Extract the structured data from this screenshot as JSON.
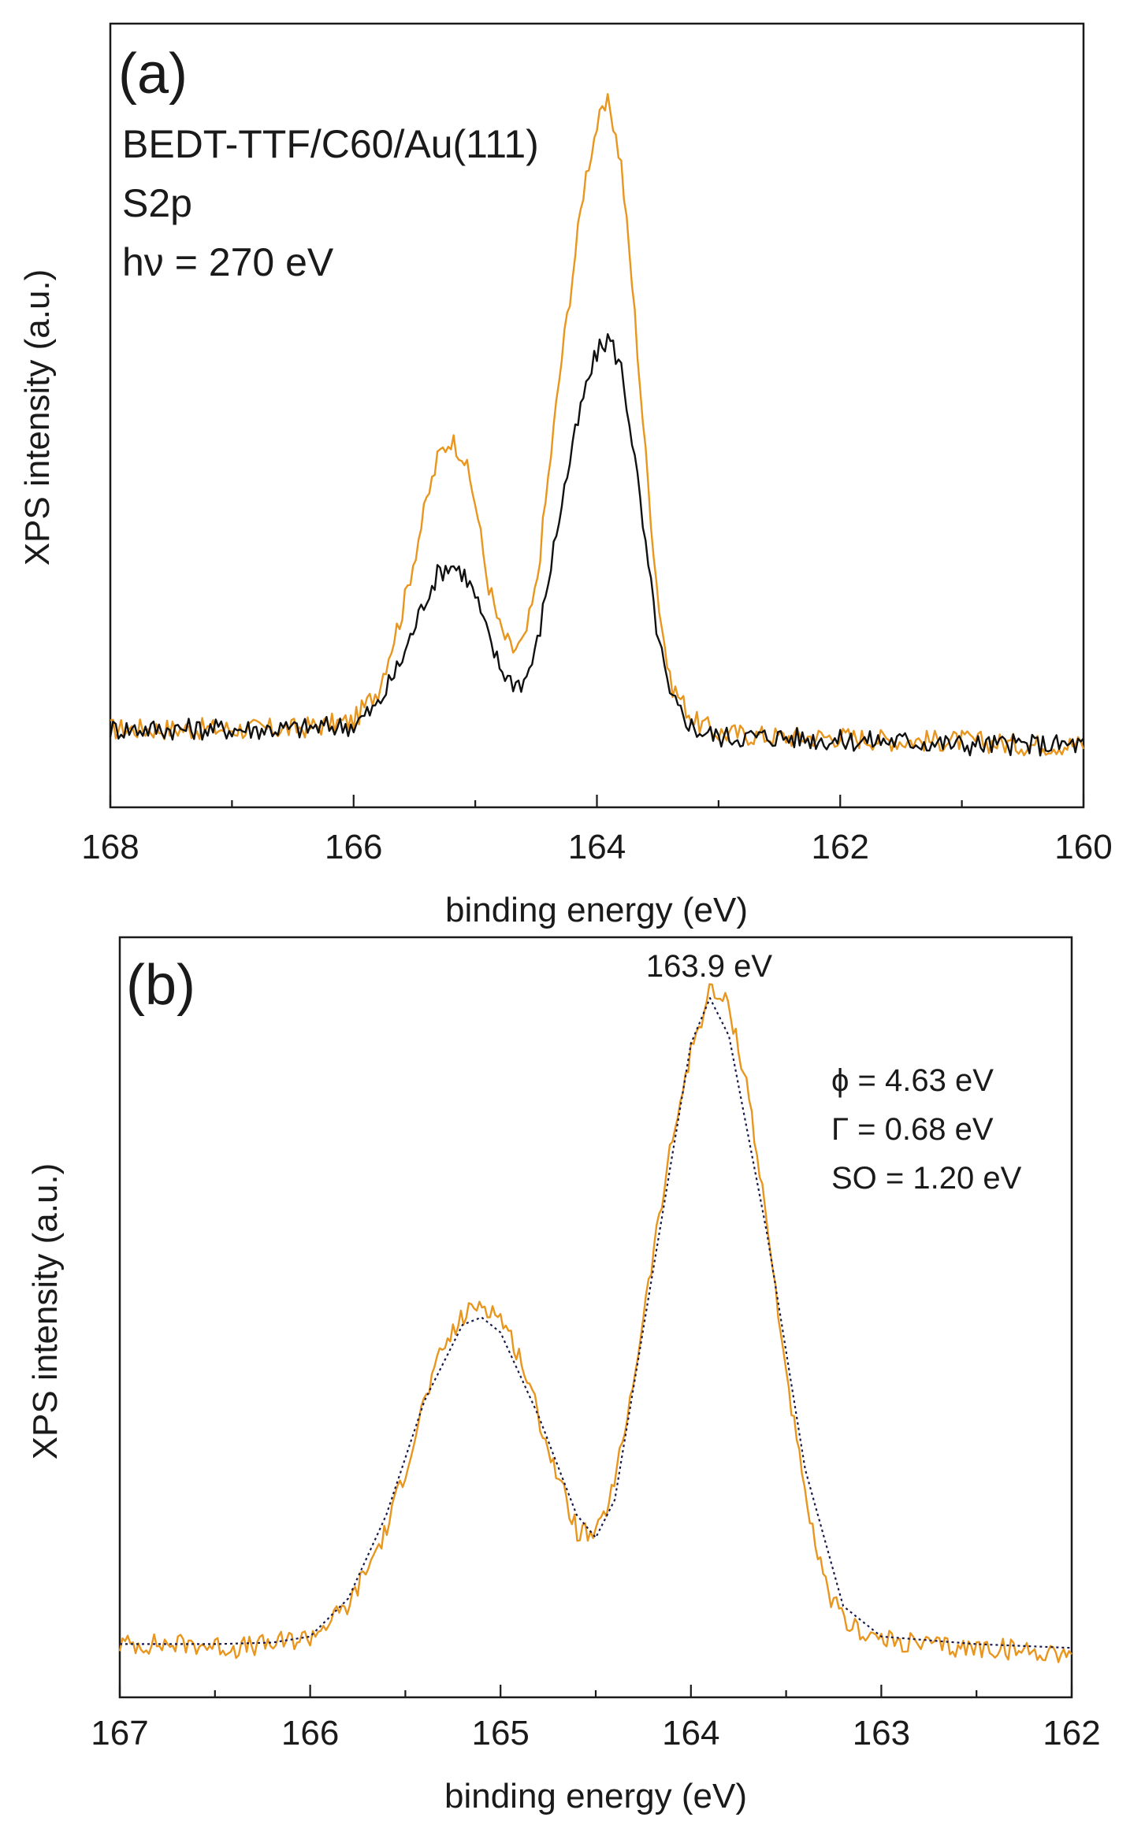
{
  "chart_data": [
    {
      "panel": "(a)",
      "type": "line",
      "annotations": [
        "BEDT-TTF/C60/Au(111)",
        "S2p",
        "hν = 270 eV"
      ],
      "xlabel": "binding energy (eV)",
      "ylabel": "XPS intensity (a.u.)",
      "xlim": [
        168,
        160
      ],
      "xticks": [
        "168",
        "166",
        "164",
        "162",
        "160"
      ],
      "ylim": [
        0,
        1.0
      ],
      "grid": false,
      "series": [
        {
          "color": "#e8961e",
          "x": [
            168,
            167.5,
            167,
            166.5,
            166,
            165.8,
            165.6,
            165.4,
            165.3,
            165.2,
            165.1,
            165.0,
            164.9,
            164.8,
            164.7,
            164.6,
            164.5,
            164.4,
            164.3,
            164.2,
            164.1,
            164.0,
            163.9,
            163.8,
            163.7,
            163.6,
            163.5,
            163.4,
            163.2,
            163.0,
            162.5,
            162,
            161.5,
            161,
            160.5,
            160
          ],
          "y": [
            0.1,
            0.1,
            0.1,
            0.1,
            0.11,
            0.15,
            0.25,
            0.39,
            0.45,
            0.47,
            0.45,
            0.39,
            0.29,
            0.23,
            0.2,
            0.21,
            0.28,
            0.42,
            0.56,
            0.68,
            0.8,
            0.87,
            0.9,
            0.82,
            0.65,
            0.45,
            0.27,
            0.16,
            0.11,
            0.095,
            0.09,
            0.09,
            0.085,
            0.085,
            0.08,
            0.08
          ]
        },
        {
          "color": "#111111",
          "x": [
            168,
            167.5,
            167,
            166.5,
            166,
            165.8,
            165.6,
            165.4,
            165.3,
            165.2,
            165.1,
            165.0,
            164.9,
            164.8,
            164.7,
            164.6,
            164.5,
            164.4,
            164.3,
            164.2,
            164.1,
            164.0,
            163.9,
            163.8,
            163.7,
            163.6,
            163.5,
            163.4,
            163.2,
            163.0,
            162.5,
            162,
            161.5,
            161,
            160.5,
            160
          ],
          "y": [
            0.1,
            0.1,
            0.1,
            0.1,
            0.105,
            0.13,
            0.19,
            0.27,
            0.3,
            0.31,
            0.3,
            0.27,
            0.22,
            0.18,
            0.16,
            0.16,
            0.2,
            0.29,
            0.38,
            0.46,
            0.53,
            0.58,
            0.6,
            0.56,
            0.46,
            0.33,
            0.22,
            0.14,
            0.1,
            0.09,
            0.09,
            0.085,
            0.085,
            0.08,
            0.08,
            0.08
          ]
        }
      ]
    },
    {
      "panel": "(b)",
      "type": "line",
      "annotations": [
        "163.9 eV",
        "ϕ = 4.63 eV",
        "Γ = 0.68 eV",
        "SO = 1.20 eV"
      ],
      "xlabel": "binding energy (eV)",
      "ylabel": "XPS intensity (a.u.)",
      "xlim": [
        167,
        162
      ],
      "xticks": [
        "167",
        "166",
        "165",
        "164",
        "163",
        "162"
      ],
      "ylim": [
        0,
        1.0
      ],
      "grid": false,
      "series": [
        {
          "color": "#e8961e",
          "x": [
            167,
            166.8,
            166.6,
            166.4,
            166.2,
            166.0,
            165.8,
            165.6,
            165.5,
            165.4,
            165.3,
            165.2,
            165.1,
            165.0,
            164.9,
            164.8,
            164.7,
            164.6,
            164.5,
            164.4,
            164.3,
            164.2,
            164.1,
            164.0,
            163.9,
            163.8,
            163.7,
            163.6,
            163.5,
            163.4,
            163.3,
            163.2,
            163.0,
            162.8,
            162.6,
            162.4,
            162.2,
            162.0
          ],
          "y": [
            0.07,
            0.07,
            0.07,
            0.065,
            0.07,
            0.08,
            0.12,
            0.22,
            0.3,
            0.39,
            0.46,
            0.5,
            0.52,
            0.5,
            0.45,
            0.37,
            0.29,
            0.22,
            0.21,
            0.28,
            0.42,
            0.58,
            0.73,
            0.85,
            0.93,
            0.91,
            0.8,
            0.62,
            0.43,
            0.26,
            0.15,
            0.1,
            0.075,
            0.07,
            0.065,
            0.065,
            0.06,
            0.06
          ]
        },
        {
          "color": "#1a1a4a",
          "style": "dotted",
          "x": [
            167,
            166.5,
            166.2,
            166.0,
            165.8,
            165.6,
            165.4,
            165.2,
            165.1,
            165.0,
            164.8,
            164.6,
            164.5,
            164.4,
            164.2,
            164.0,
            163.9,
            163.8,
            163.6,
            163.4,
            163.2,
            163.0,
            162.5,
            162.0
          ],
          "y": [
            0.07,
            0.07,
            0.072,
            0.08,
            0.13,
            0.24,
            0.39,
            0.49,
            0.5,
            0.48,
            0.37,
            0.24,
            0.21,
            0.26,
            0.56,
            0.86,
            0.92,
            0.87,
            0.61,
            0.3,
            0.12,
            0.08,
            0.07,
            0.065
          ]
        }
      ]
    }
  ]
}
